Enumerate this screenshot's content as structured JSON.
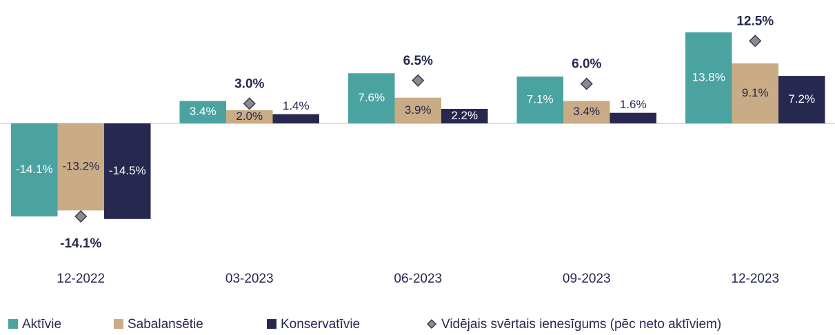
{
  "chart_data": {
    "type": "bar",
    "categories": [
      "12-2022",
      "03-2023",
      "06-2023",
      "09-2023",
      "12-2023"
    ],
    "series": [
      {
        "name": "Aktīvie",
        "color": "#4aa3a0",
        "values": [
          -14.1,
          3.4,
          7.6,
          7.1,
          13.8
        ],
        "value_labels": [
          "-14.1%",
          "3.4%",
          "7.6%",
          "7.1%",
          "13.8%"
        ]
      },
      {
        "name": "Sabalansētie",
        "color": "#c9ab85",
        "values": [
          -13.2,
          2.0,
          3.9,
          3.4,
          9.1
        ],
        "value_labels": [
          "-13.2%",
          "2.0%",
          "3.9%",
          "3.4%",
          "9.1%"
        ]
      },
      {
        "name": "Konservatīvie",
        "color": "#262850",
        "values": [
          -14.5,
          1.4,
          2.2,
          1.6,
          7.2
        ],
        "value_labels": [
          "-14.5%",
          "1.4%",
          "2.2%",
          "1.6%",
          "7.2%"
        ]
      },
      {
        "name": "Vidējais svērtais ienesīgums (pēc neto aktīviem)",
        "type": "diamond",
        "color": "#8a8a95",
        "values": [
          -14.1,
          3.0,
          6.5,
          6.0,
          12.5
        ],
        "value_labels": [
          "-14.1%",
          "3.0%",
          "6.5%",
          "6.0%",
          "12.5%"
        ]
      }
    ],
    "ylim": [
      -15,
      15
    ]
  }
}
